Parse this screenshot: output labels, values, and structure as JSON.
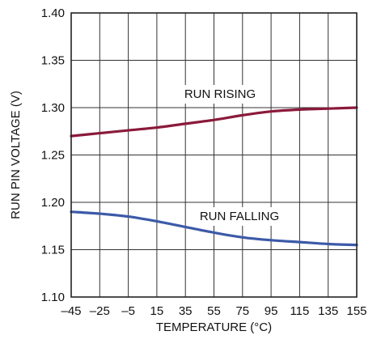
{
  "chart_data": {
    "type": "line",
    "title": "",
    "xlabel": "TEMPERATURE (°C)",
    "ylabel": "RUN PIN VOLTAGE (V)",
    "xlim": [
      -45,
      155
    ],
    "ylim": [
      1.1,
      1.4
    ],
    "grid": true,
    "legend": "none",
    "x_ticks": [
      -45,
      -25,
      -5,
      15,
      35,
      55,
      75,
      95,
      115,
      135,
      155
    ],
    "x_tick_labels": [
      "–45",
      "–25",
      "–5",
      "15",
      "35",
      "55",
      "75",
      "95",
      "115",
      "135",
      "155"
    ],
    "y_ticks": [
      1.1,
      1.15,
      1.2,
      1.25,
      1.3,
      1.35,
      1.4
    ],
    "y_tick_labels": [
      "1.10",
      "1.15",
      "1.20",
      "1.25",
      "1.30",
      "1.35",
      "1.40"
    ],
    "series": [
      {
        "name": "RUN RISING",
        "color": "#8b1a3a",
        "x": [
          -45,
          -25,
          -5,
          15,
          35,
          55,
          75,
          95,
          115,
          135,
          155
        ],
        "y": [
          1.27,
          1.273,
          1.276,
          1.279,
          1.283,
          1.287,
          1.292,
          1.296,
          1.298,
          1.299,
          1.3
        ]
      },
      {
        "name": "RUN FALLING",
        "color": "#3c5aa8",
        "x": [
          -45,
          -25,
          -5,
          15,
          35,
          55,
          75,
          95,
          115,
          135,
          155
        ],
        "y": [
          1.19,
          1.188,
          1.185,
          1.18,
          1.174,
          1.168,
          1.163,
          1.16,
          1.158,
          1.156,
          1.155
        ]
      }
    ]
  }
}
